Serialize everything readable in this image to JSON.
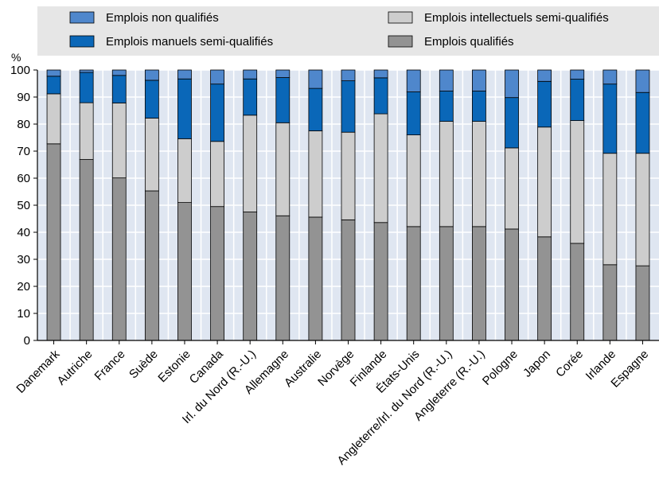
{
  "chart_data": {
    "type": "bar",
    "stacked": true,
    "unit_label": "%",
    "ylim": [
      0,
      100
    ],
    "yticks": [
      0,
      10,
      20,
      30,
      40,
      50,
      60,
      70,
      80,
      90,
      100
    ],
    "grid": true,
    "legend_position": "top",
    "categories": [
      "Danemark",
      "Autriche",
      "France",
      "Suède",
      "Estonie",
      "Canada",
      "Irl. du Nord (R.-U.)",
      "Allemagne",
      "Australie",
      "Norvège",
      "Finlande",
      "États-Unis",
      "Angleterre/Irl. du Nord (R.-U.)",
      "Angleterre (R.-U.)",
      "Pologne",
      "Japon",
      "Corée",
      "Irlande",
      "Espagne"
    ],
    "series": [
      {
        "name": "Emplois qualifiés",
        "color": "#939393",
        "values": [
          72.7,
          66.9,
          60.1,
          55.3,
          51.0,
          49.5,
          47.5,
          46.1,
          45.6,
          44.6,
          43.6,
          42.1,
          42.1,
          42.1,
          41.2,
          38.3,
          35.9,
          28.0,
          27.6
        ]
      },
      {
        "name": "Emplois intellectuels semi-qualifiés",
        "color": "#cdcdcd",
        "values": [
          18.5,
          21.0,
          27.7,
          26.9,
          23.6,
          24.1,
          35.8,
          34.4,
          31.9,
          32.4,
          40.2,
          33.9,
          38.9,
          38.9,
          30.0,
          40.6,
          45.4,
          41.2,
          41.6
        ]
      },
      {
        "name": "Emplois manuels semi-qualifiés",
        "color": "#0a67b8",
        "values": [
          6.5,
          11.2,
          10.2,
          14.0,
          22.1,
          21.2,
          13.4,
          16.7,
          15.7,
          19.0,
          13.3,
          15.9,
          11.2,
          11.2,
          18.6,
          16.9,
          15.3,
          25.6,
          22.5
        ]
      },
      {
        "name": "Emplois non qualifiés",
        "color": "#4f87cc",
        "values": [
          2.3,
          0.9,
          2.0,
          3.8,
          3.3,
          5.2,
          3.3,
          2.8,
          6.8,
          4.0,
          2.9,
          8.1,
          7.8,
          7.8,
          10.2,
          4.2,
          3.4,
          5.2,
          8.3
        ]
      }
    ],
    "legend": [
      {
        "label": "Emplois non qualifiés",
        "color": "#4f87cc"
      },
      {
        "label": "Emplois intellectuels semi-qualifiés",
        "color": "#cdcdcd"
      },
      {
        "label": "Emplois manuels semi-qualifiés",
        "color": "#0a67b8"
      },
      {
        "label": "Emplois qualifiés",
        "color": "#939393"
      }
    ],
    "plot_bg": "#dfe6f1",
    "grid_color": "#ffffff"
  }
}
